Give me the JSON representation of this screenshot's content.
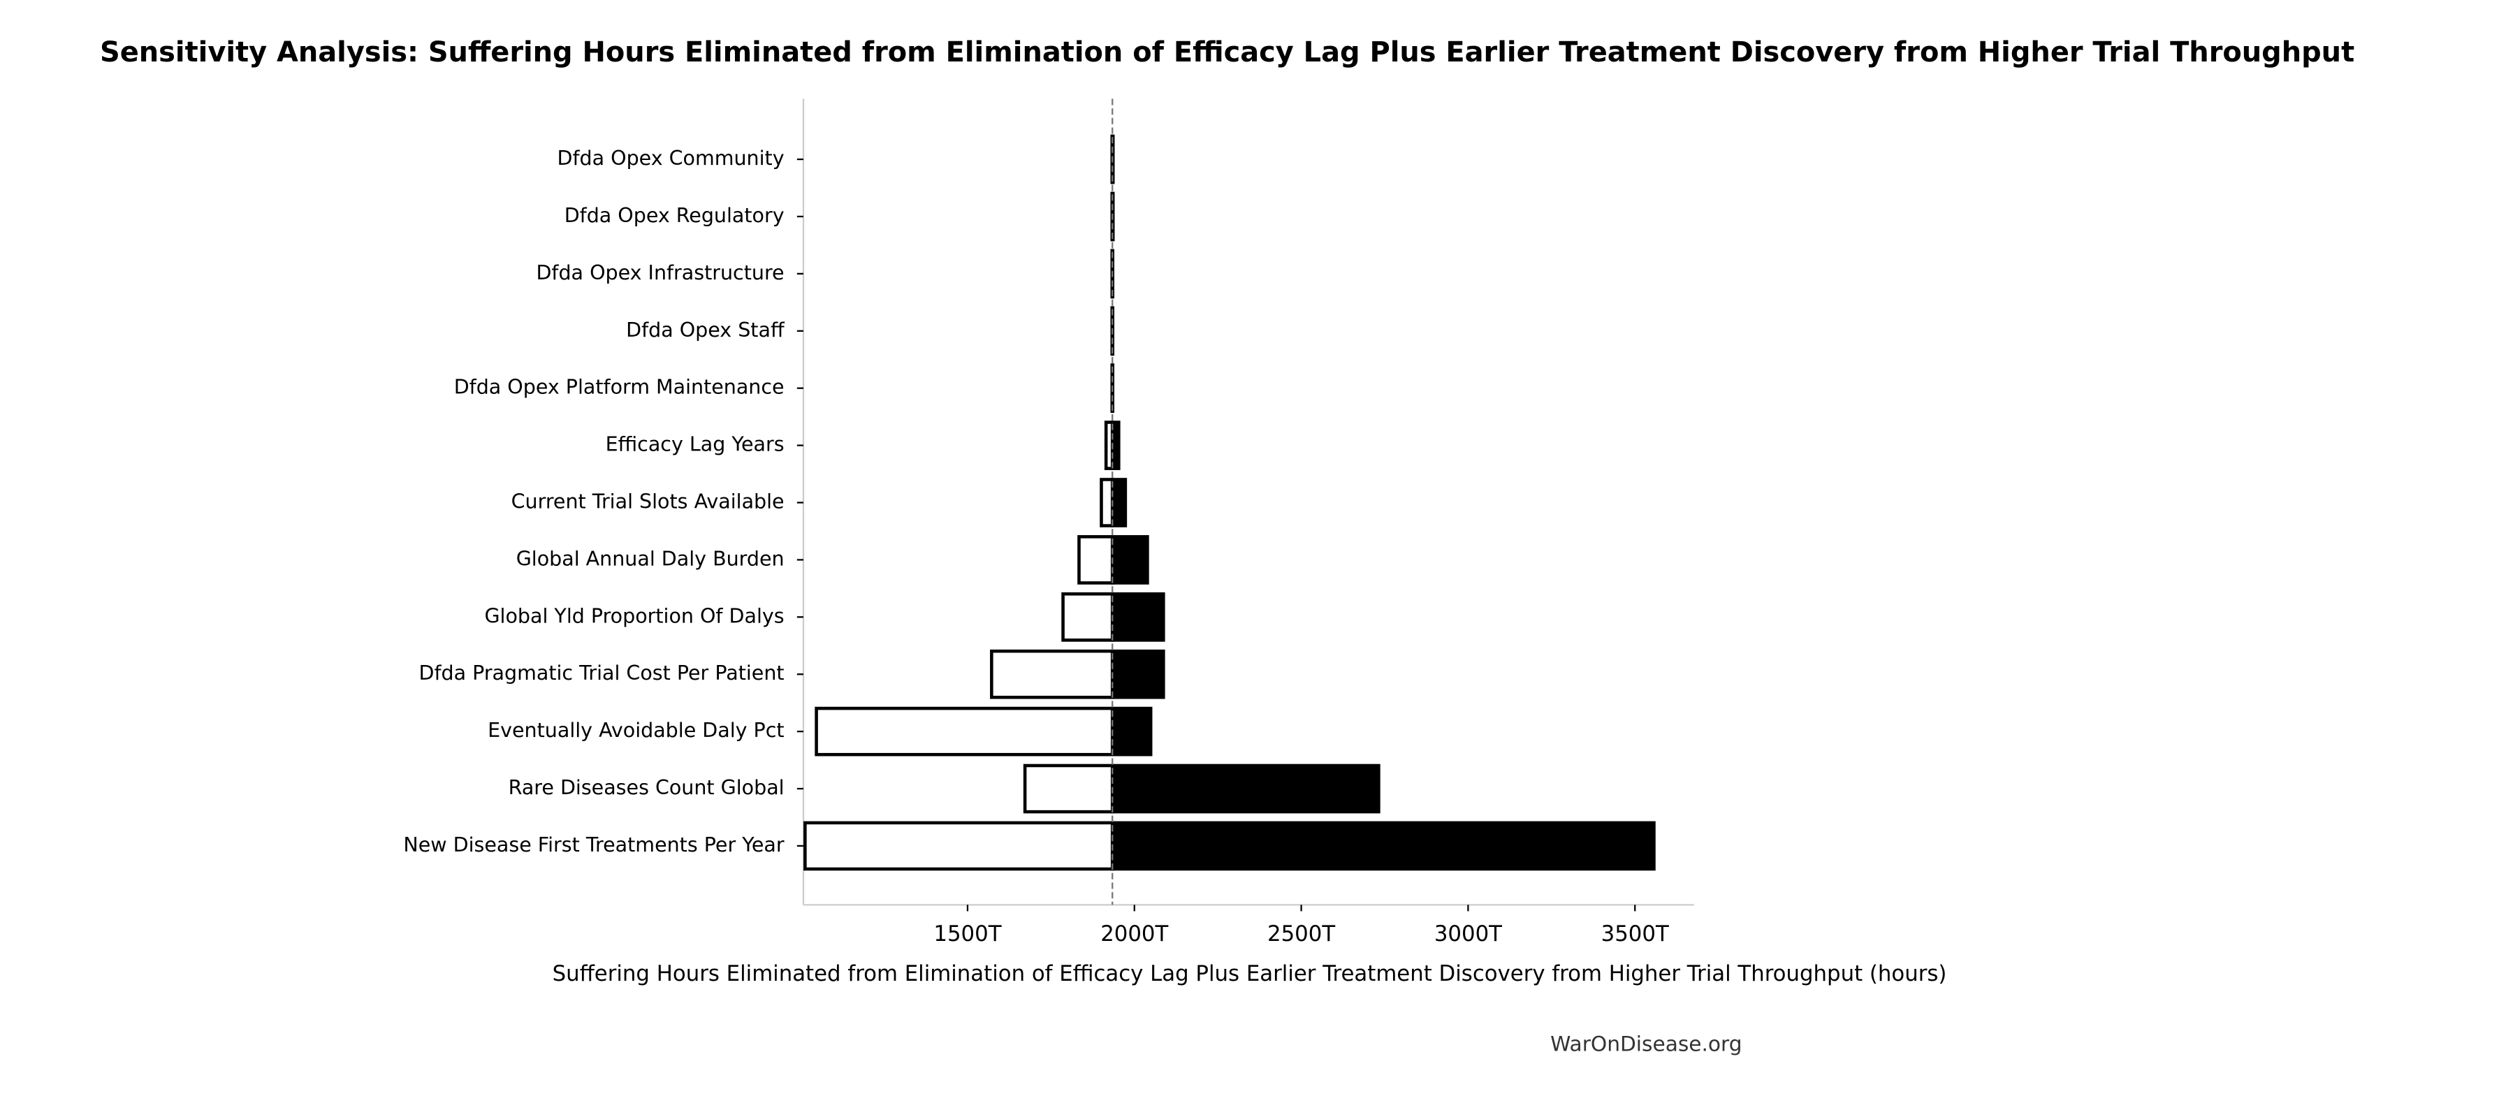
{
  "chart_data": {
    "type": "tornado",
    "title": "Sensitivity Analysis: Suffering Hours Eliminated from Elimination of Efficacy Lag Plus Earlier Treatment Discovery from Higher Trial Throughput",
    "xlabel": "Suffering Hours Eliminated from Elimination of Efficacy Lag Plus Earlier Treatment Discovery from Higher Trial Throughput (hours)",
    "source": "WarOnDisease.org",
    "categories": [
      "Dfda Opex Community",
      "Dfda Opex Regulatory",
      "Dfda Opex Infrastructure",
      "Dfda Opex Staff",
      "Dfda Opex Platform Maintenance",
      "Efficacy Lag Years",
      "Current Trial Slots Available",
      "Global Annual Daly Burden",
      "Global Yld Proportion Of Dalys",
      "Dfda Pragmatic Trial Cost Per Patient",
      "Eventually Avoidable Daly Pct",
      "Rare Diseases Count Global",
      "New Disease First Treatments Per Year"
    ],
    "baseline": 1934,
    "low": [
      1933,
      1933,
      1933,
      1933,
      1933,
      1915,
      1901,
      1834,
      1786,
      1572,
      1047,
      1672,
      1013
    ],
    "high": [
      1936,
      1936,
      1935,
      1935,
      1935,
      1953,
      1973,
      2039,
      2087,
      2087,
      2049,
      2732,
      3557
    ],
    "low_color": "#ffffff",
    "high_color": "#000000",
    "xlim": [
      1008,
      3677
    ],
    "xticks": [
      {
        "value": 1500,
        "label": "1500T"
      },
      {
        "value": 2000,
        "label": "2000T"
      },
      {
        "value": 2500,
        "label": "2500T"
      },
      {
        "value": 3000,
        "label": "3000T"
      },
      {
        "value": 3500,
        "label": "3500T"
      }
    ]
  }
}
